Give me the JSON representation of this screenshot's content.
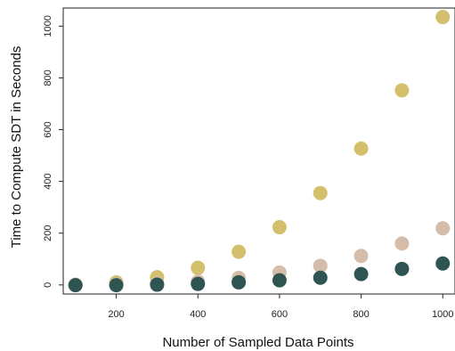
{
  "chart_data": {
    "type": "scatter",
    "title": "",
    "xlabel": "Number of Sampled Data Points",
    "ylabel": "Time to Compute SDT in Seconds",
    "x_ticks": [
      "200",
      "400",
      "600",
      "800",
      "1000"
    ],
    "y_ticks": [
      "0",
      "200",
      "400",
      "600",
      "800",
      "1000"
    ],
    "xlim": [
      70,
      1030
    ],
    "ylim": [
      -35,
      1070
    ],
    "grid": false,
    "legend": "none",
    "x": [
      100,
      200,
      300,
      400,
      500,
      600,
      700,
      800,
      900,
      1000
    ],
    "series": [
      {
        "color": "#d4c06c",
        "values": [
          1,
          10,
          30,
          66,
          128,
          223,
          355,
          527,
          752,
          1035
        ]
      },
      {
        "color": "#d6bda9",
        "values": [
          0,
          3,
          6,
          13,
          27,
          48,
          74,
          112,
          160,
          219
        ]
      },
      {
        "color": "#2e5552",
        "values": [
          -1,
          -1,
          1,
          4,
          10,
          18,
          28,
          42,
          62,
          83
        ]
      }
    ]
  }
}
